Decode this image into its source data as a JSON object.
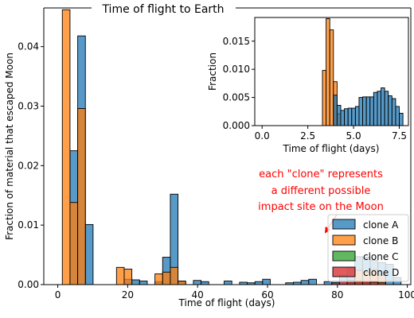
{
  "chart_data": [
    {
      "type": "bar",
      "title": "Time of flight to Earth",
      "xlabel": "Time of flight (days)",
      "ylabel": "Fraction of material that escaped Moon",
      "xlim": [
        -4,
        101
      ],
      "ylim": [
        0,
        0.0465
      ],
      "xticks": [
        0,
        20,
        40,
        60,
        80,
        100
      ],
      "yticks": [
        0.0,
        0.01,
        0.02,
        0.03,
        0.04
      ],
      "ytick_labels": [
        "0.00",
        "0.01",
        "0.02",
        "0.03",
        "0.04"
      ],
      "bin_width": 2.2,
      "legend_position": "lower-right",
      "series": [
        {
          "name": "clone A",
          "color": "#1f77b4",
          "bars": [
            [
              4.6,
              0.0225
            ],
            [
              6.8,
              0.0418
            ],
            [
              9.0,
              0.0101
            ],
            [
              20.1,
              0.0009
            ],
            [
              22.3,
              0.0008
            ],
            [
              24.5,
              0.0006
            ],
            [
              28.9,
              0.0005
            ],
            [
              31.1,
              0.0046
            ],
            [
              33.3,
              0.0152
            ],
            [
              35.5,
              0.0005
            ],
            [
              39.9,
              0.0007
            ],
            [
              42.1,
              0.0005
            ],
            [
              48.7,
              0.0006
            ],
            [
              53.1,
              0.0004
            ],
            [
              55.3,
              0.0003
            ],
            [
              57.5,
              0.0005
            ],
            [
              59.7,
              0.0009
            ],
            [
              66.3,
              0.0003
            ],
            [
              68.5,
              0.0004
            ],
            [
              70.7,
              0.0007
            ],
            [
              72.9,
              0.0009
            ],
            [
              77.3,
              0.0005
            ],
            [
              79.5,
              0.0006
            ],
            [
              81.7,
              0.0016
            ],
            [
              83.9,
              0.0028
            ],
            [
              86.1,
              0.0047
            ],
            [
              88.3,
              0.0046
            ],
            [
              90.5,
              0.0041
            ],
            [
              92.7,
              0.0037
            ],
            [
              94.9,
              0.0034
            ],
            [
              97.1,
              0.0012
            ]
          ]
        },
        {
          "name": "clone B",
          "color": "#ff7f0e",
          "bars": [
            [
              2.4,
              0.0462
            ],
            [
              4.6,
              0.0138
            ],
            [
              6.8,
              0.0296
            ],
            [
              17.9,
              0.0029
            ],
            [
              20.1,
              0.0026
            ],
            [
              28.9,
              0.0018
            ],
            [
              31.1,
              0.0021
            ],
            [
              33.3,
              0.0029
            ],
            [
              35.5,
              0.0006
            ],
            [
              86.1,
              0.0024
            ],
            [
              88.3,
              0.0021
            ],
            [
              90.5,
              0.0025
            ],
            [
              92.7,
              0.0016
            ]
          ]
        },
        {
          "name": "clone C",
          "color": "#2ca02c",
          "bars": [
            [
              83.9,
              0.0003
            ],
            [
              86.1,
              0.0004
            ],
            [
              88.3,
              0.0003
            ]
          ]
        },
        {
          "name": "clone D",
          "color": "#d62728",
          "bars": [
            [
              79.5,
              0.0003
            ],
            [
              81.7,
              0.0006
            ],
            [
              83.9,
              0.0007
            ],
            [
              86.1,
              0.0006
            ],
            [
              88.3,
              0.0005
            ],
            [
              90.5,
              0.0004
            ],
            [
              92.7,
              0.0003
            ]
          ]
        }
      ]
    },
    {
      "type": "bar",
      "title": "",
      "xlabel": "Time of flight (days)",
      "ylabel": "Fraction",
      "xlim": [
        -0.4,
        8.0
      ],
      "ylim": [
        0,
        0.0192
      ],
      "xticks": [
        0.0,
        2.5,
        5.0,
        7.5
      ],
      "xtick_labels": [
        "0.0",
        "2.5",
        "5.0",
        "7.5"
      ],
      "yticks": [
        0.0,
        0.005,
        0.01,
        0.015
      ],
      "ytick_labels": [
        "0.000",
        "0.005",
        "0.010",
        "0.015"
      ],
      "bin_width": 0.2,
      "series": [
        {
          "name": "clone B",
          "color": "#ff7f0e",
          "bars": [
            [
              3.4,
              0.0098
            ],
            [
              3.6,
              0.019
            ],
            [
              3.8,
              0.017
            ],
            [
              4.0,
              0.0078
            ],
            [
              4.2,
              0.0021
            ]
          ]
        },
        {
          "name": "clone A",
          "color": "#1f77b4",
          "bars": [
            [
              4.0,
              0.0054
            ],
            [
              4.2,
              0.0036
            ],
            [
              4.4,
              0.0027
            ],
            [
              4.6,
              0.003
            ],
            [
              4.8,
              0.0031
            ],
            [
              5.0,
              0.0031
            ],
            [
              5.2,
              0.0034
            ],
            [
              5.4,
              0.005
            ],
            [
              5.6,
              0.0051
            ],
            [
              5.8,
              0.0051
            ],
            [
              6.0,
              0.0051
            ],
            [
              6.2,
              0.0059
            ],
            [
              6.4,
              0.0061
            ],
            [
              6.6,
              0.0067
            ],
            [
              6.8,
              0.0061
            ],
            [
              7.0,
              0.0053
            ],
            [
              7.2,
              0.0048
            ],
            [
              7.4,
              0.0034
            ],
            [
              7.6,
              0.0022
            ]
          ]
        }
      ]
    }
  ],
  "annotation": {
    "text": [
      "each \"clone\" represents",
      "a different possible",
      "impact site on the Moon"
    ],
    "color": "#ff0000"
  }
}
